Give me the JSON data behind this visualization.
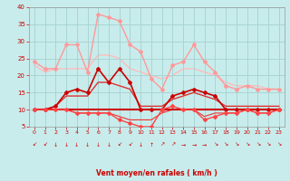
{
  "background_color": "#c8ecec",
  "grid_color": "#aad4d4",
  "xlabel": "Vent moyen/en rafales ( km/h )",
  "xlabel_color": "#cc0000",
  "tick_color": "#cc0000",
  "xlim": [
    -0.5,
    23.5
  ],
  "ylim": [
    5,
    40
  ],
  "yticks": [
    5,
    10,
    15,
    20,
    25,
    30,
    35,
    40
  ],
  "xticks": [
    0,
    1,
    2,
    3,
    4,
    5,
    6,
    7,
    8,
    9,
    10,
    11,
    12,
    13,
    14,
    15,
    16,
    17,
    18,
    19,
    20,
    21,
    22,
    23
  ],
  "series": [
    {
      "y": [
        24,
        22,
        22,
        29,
        29,
        21,
        38,
        37,
        36,
        29,
        27,
        19,
        16,
        23,
        24,
        29,
        24,
        21,
        17,
        16,
        17,
        16,
        16,
        16
      ],
      "color": "#ff9999",
      "lw": 1.0,
      "marker": "D",
      "ms": 2.0,
      "zorder": 2
    },
    {
      "y": [
        23,
        21,
        22,
        22,
        22,
        22,
        26,
        26,
        25,
        22,
        21,
        20,
        19,
        20,
        22,
        22,
        21,
        20,
        18,
        17,
        17,
        17,
        16,
        16
      ],
      "color": "#ffbbbb",
      "lw": 1.0,
      "marker": null,
      "ms": 0,
      "zorder": 1
    },
    {
      "y": [
        10,
        10,
        11,
        15,
        16,
        15,
        22,
        18,
        22,
        18,
        10,
        10,
        10,
        14,
        15,
        16,
        15,
        14,
        10,
        10,
        10,
        10,
        10,
        10
      ],
      "color": "#cc0000",
      "lw": 1.2,
      "marker": "D",
      "ms": 2.0,
      "zorder": 4
    },
    {
      "y": [
        10,
        10,
        11,
        14,
        14,
        14,
        18,
        18,
        17,
        16,
        11,
        11,
        11,
        13,
        14,
        15,
        14,
        13,
        11,
        11,
        11,
        11,
        11,
        11
      ],
      "color": "#dd3333",
      "lw": 1.0,
      "marker": null,
      "ms": 0,
      "zorder": 3
    },
    {
      "y": [
        10,
        10,
        10,
        10,
        10,
        10,
        10,
        10,
        10,
        10,
        10,
        10,
        10,
        10,
        10,
        10,
        10,
        10,
        10,
        10,
        10,
        10,
        10,
        10
      ],
      "color": "#cc0000",
      "lw": 1.5,
      "marker": null,
      "ms": 0,
      "zorder": 5
    },
    {
      "y": [
        10,
        10,
        10,
        10,
        9,
        9,
        9,
        9,
        7,
        6,
        5,
        5,
        10,
        11,
        10,
        10,
        7,
        8,
        9,
        9,
        10,
        9,
        9,
        10
      ],
      "color": "#ff4444",
      "lw": 1.0,
      "marker": "D",
      "ms": 2.0,
      "zorder": 6
    },
    {
      "y": [
        10,
        10,
        10,
        10,
        9,
        9,
        9,
        9,
        8,
        7,
        7,
        7,
        9,
        10,
        10,
        10,
        8,
        9,
        9,
        9,
        10,
        9,
        9,
        10
      ],
      "color": "#ee3333",
      "lw": 0.8,
      "marker": null,
      "ms": 0,
      "zorder": 3
    }
  ],
  "wind_arrows": [
    "↙",
    "↙",
    "↓",
    "↓",
    "↓",
    "↓",
    "↓",
    "↓",
    "↙",
    "↙",
    "↓",
    "↑",
    "↗",
    "↗",
    "→",
    "→",
    "→",
    "↘",
    "↘",
    "↘",
    "↘",
    "↘",
    "↘",
    "↘"
  ]
}
